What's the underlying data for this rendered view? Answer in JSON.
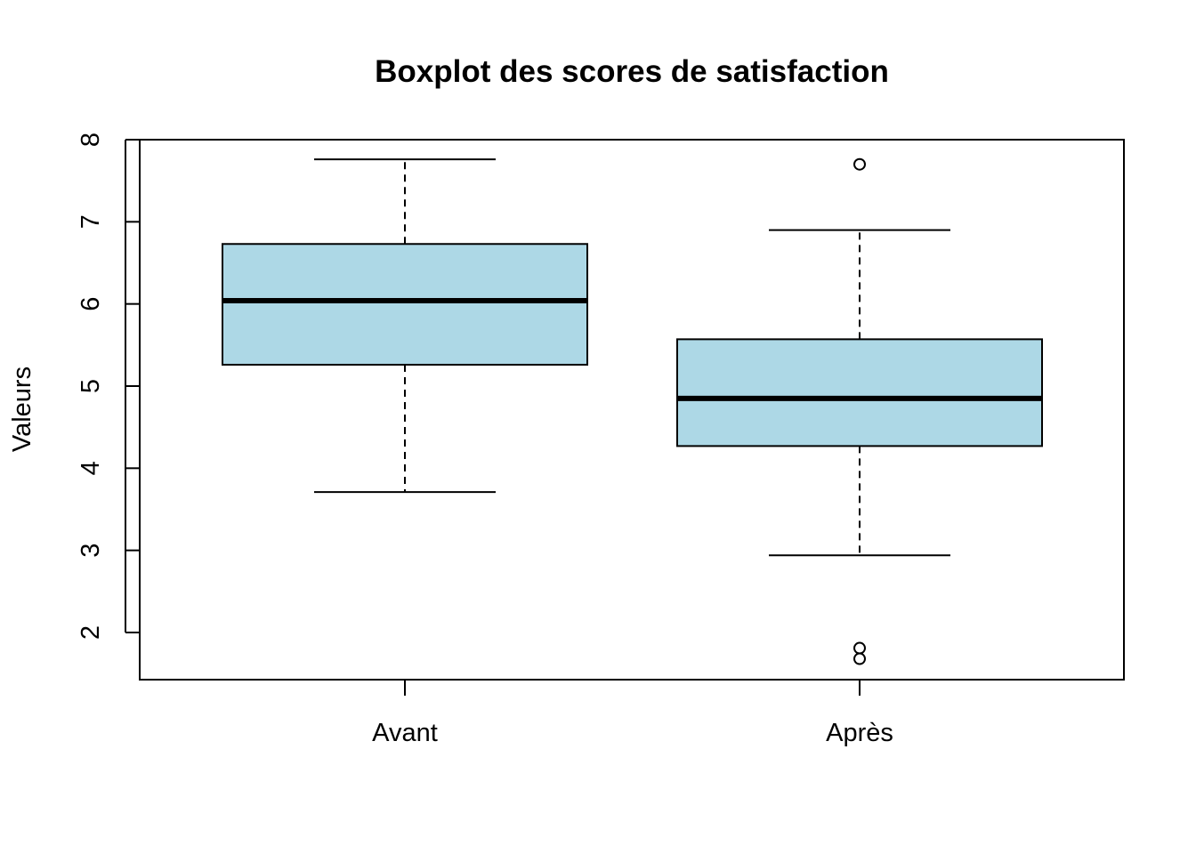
{
  "chart_data": {
    "type": "boxplot",
    "title": "Boxplot des scores de satisfaction",
    "xlabel": "",
    "ylabel": "Valeurs",
    "ylim": [
      1.48,
      8.0
    ],
    "yticks": [
      2,
      3,
      4,
      5,
      6,
      7,
      8
    ],
    "box_color": "#add8e6",
    "groups": [
      {
        "name": "Avant",
        "whisker_low": 3.71,
        "q1": 5.26,
        "median": 6.04,
        "q3": 6.73,
        "whisker_high": 7.76,
        "outliers": []
      },
      {
        "name": "Après",
        "whisker_low": 2.94,
        "q1": 4.27,
        "median": 4.85,
        "q3": 5.57,
        "whisker_high": 6.9,
        "outliers": [
          7.7,
          1.81,
          1.68
        ]
      }
    ]
  }
}
